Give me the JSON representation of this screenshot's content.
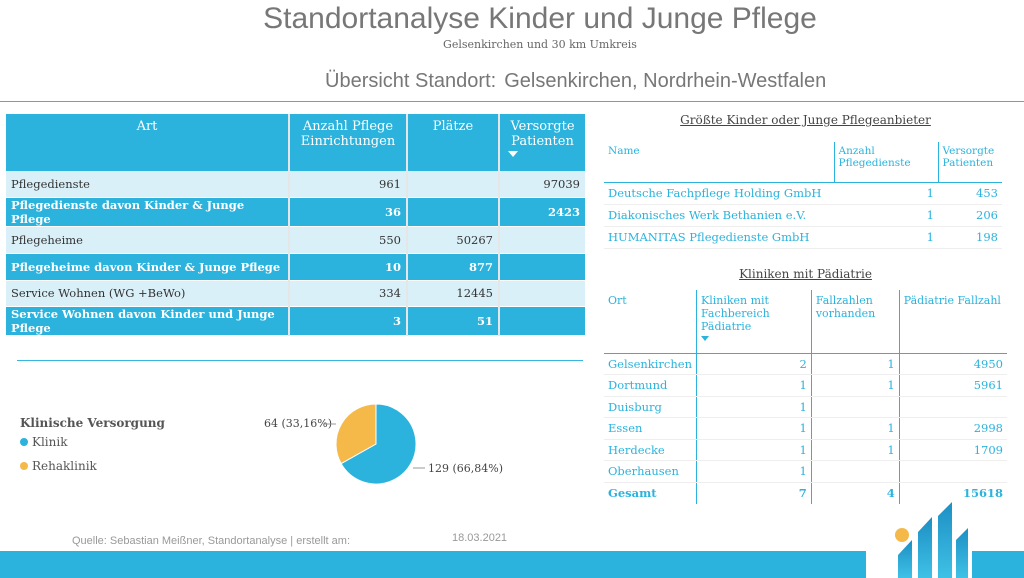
{
  "header": {
    "title": "Standortanalyse Kinder und Junge Pflege",
    "subtitle": "Gelsenkirchen und 30 km Umkreis",
    "overview_label": "Übersicht Standort:",
    "overview_location": "Gelsenkirchen, Nordrhein-Westfalen"
  },
  "main_table": {
    "headers": [
      "Art",
      "Anzahl Pflege Einrichtungen",
      "Plätze",
      "Versorgte Patienten"
    ],
    "rows": [
      {
        "art": "Pflegedienste",
        "anzahl": "961",
        "plaetze": "",
        "patienten": "97039"
      },
      {
        "art": "Pflegedienste davon Kinder & Junge Pflege",
        "anzahl": "36",
        "plaetze": "",
        "patienten": "2423"
      },
      {
        "art": "Pflegeheime",
        "anzahl": "550",
        "plaetze": "50267",
        "patienten": ""
      },
      {
        "art": "Pflegeheime davon Kinder & Junge Pflege",
        "anzahl": "10",
        "plaetze": "877",
        "patienten": ""
      },
      {
        "art": "Service Wohnen (WG +BeWo)",
        "anzahl": "334",
        "plaetze": "12445",
        "patienten": ""
      },
      {
        "art": "Service Wohnen davon Kinder und Junge Pflege",
        "anzahl": "3",
        "plaetze": "51",
        "patienten": ""
      }
    ]
  },
  "clinical": {
    "title": "Klinische Versorgung",
    "legend": [
      {
        "label": "Klinik",
        "color": "#2bb3dd"
      },
      {
        "label": "Rehaklinik",
        "color": "#f5b94a"
      }
    ],
    "label_reha": "64 (33,16%)",
    "label_klinik": "129 (66,84%)"
  },
  "chart_data": {
    "type": "pie",
    "title": "Klinische Versorgung",
    "categories": [
      "Klinik",
      "Rehaklinik"
    ],
    "values": [
      129,
      64
    ],
    "percentages": [
      66.84,
      33.16
    ],
    "colors": [
      "#2bb3dd",
      "#f5b94a"
    ],
    "legend_position": "left"
  },
  "providers": {
    "title": "Größte Kinder oder Junge Pflegeanbieter",
    "headers": [
      "Name",
      "Anzahl Pflegedienste",
      "Versorgte Patienten"
    ],
    "rows": [
      {
        "name": "Deutsche Fachpflege Holding GmbH",
        "anzahl": "1",
        "patienten": "453"
      },
      {
        "name": "Diakonisches Werk Bethanien e.V.",
        "anzahl": "1",
        "patienten": "206"
      },
      {
        "name": "HUMANITAS Pflegedienste GmbH",
        "anzahl": "1",
        "patienten": "198"
      }
    ]
  },
  "kliniken": {
    "title": "Kliniken mit Pädiatrie",
    "headers": [
      "Ort",
      "Kliniken mit Fachbereich Pädiatrie",
      "Fallzahlen vorhanden",
      "Pädiatrie Fallzahl"
    ],
    "rows": [
      {
        "ort": "Gelsenkirchen",
        "kliniken": "2",
        "fallzahlen": "1",
        "fallzahl": "4950"
      },
      {
        "ort": "Dortmund",
        "kliniken": "1",
        "fallzahlen": "1",
        "fallzahl": "5961"
      },
      {
        "ort": "Duisburg",
        "kliniken": "1",
        "fallzahlen": "",
        "fallzahl": ""
      },
      {
        "ort": "Essen",
        "kliniken": "1",
        "fallzahlen": "1",
        "fallzahl": "2998"
      },
      {
        "ort": "Herdecke",
        "kliniken": "1",
        "fallzahlen": "1",
        "fallzahl": "1709"
      },
      {
        "ort": "Oberhausen",
        "kliniken": "1",
        "fallzahlen": "",
        "fallzahl": ""
      }
    ],
    "total": {
      "ort": "Gesamt",
      "kliniken": "7",
      "fallzahlen": "4",
      "fallzahl": "15618"
    }
  },
  "footer": {
    "source": "Quelle: Sebastian Meißner, Standortanalyse | erstellt am:",
    "date": "18.03.2021"
  },
  "colors": {
    "accent": "#2bb3dd",
    "accent_light": "#daf0f8",
    "orange": "#f5b94a"
  }
}
